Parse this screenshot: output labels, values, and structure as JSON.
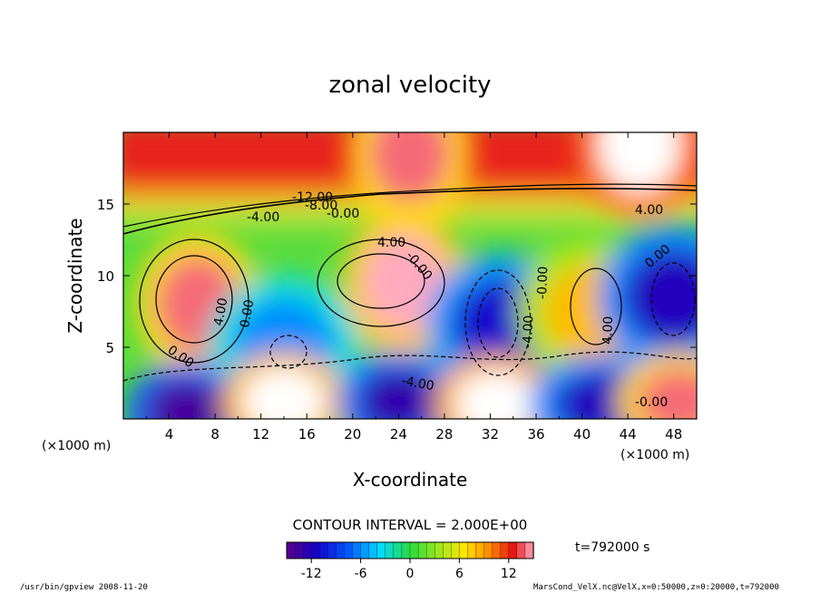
{
  "chart_data": {
    "type": "heatmap",
    "title": "zonal velocity",
    "xlabel": "X-coordinate",
    "ylabel": "Z-coordinate",
    "x_unit_left": "(×1000 m)",
    "x_unit_right": "(×1000 m)",
    "xlim": [
      0,
      50
    ],
    "ylim": [
      0,
      20
    ],
    "x_ticks": [
      "4",
      "8",
      "12",
      "16",
      "20",
      "24",
      "28",
      "32",
      "36",
      "40",
      "44",
      "48"
    ],
    "y_ticks": [
      "5",
      "10",
      "15"
    ],
    "contour_interval_text": "CONTOUR INTERVAL = 2.000E+00",
    "time_text": "t=792000 s",
    "colorbar_range": [
      -15,
      15
    ],
    "colorbar_ticks": [
      "-12",
      "-6",
      "0",
      "6",
      "12"
    ],
    "contour_labels": [
      "-12.00",
      "-8.00",
      "-4.00",
      "-0.00",
      "4.00",
      "4.00",
      "4.00",
      "-0.00",
      "-0.00",
      "0.00",
      "0.00",
      "-4.00",
      "-4.00",
      "4.00",
      "0.00",
      "-0.00"
    ],
    "features": [
      {
        "x": 6.5,
        "z": 8.0,
        "value": 14
      },
      {
        "x": 24.5,
        "z": 9.5,
        "value": 15
      },
      {
        "x": 14,
        "z": 5.0,
        "value": -6
      },
      {
        "x": 33,
        "z": 6.5,
        "value": -11
      },
      {
        "x": 41,
        "z": 7.5,
        "value": 8
      },
      {
        "x": 48,
        "z": 8.5,
        "value": -12
      },
      {
        "x": 5.5,
        "z": 0.5,
        "value": -14
      },
      {
        "x": 14,
        "z": 1.2,
        "value": 16
      },
      {
        "x": 24,
        "z": 1.2,
        "value": -13
      },
      {
        "x": 32.5,
        "z": 1.0,
        "value": 17
      },
      {
        "x": 42,
        "z": 1.0,
        "value": -12
      },
      {
        "x": 48.5,
        "z": 1.2,
        "value": 14
      },
      {
        "x": 45,
        "z": 19.2,
        "value": 20
      },
      {
        "x": 25,
        "z": 18.5,
        "value": 14
      }
    ]
  },
  "footer": {
    "left": "/usr/bin/gpview   2008-11-20",
    "right": "MarsCond_VelX.nc@VelX,x=0:50000,z=0:20000,t=792000"
  }
}
